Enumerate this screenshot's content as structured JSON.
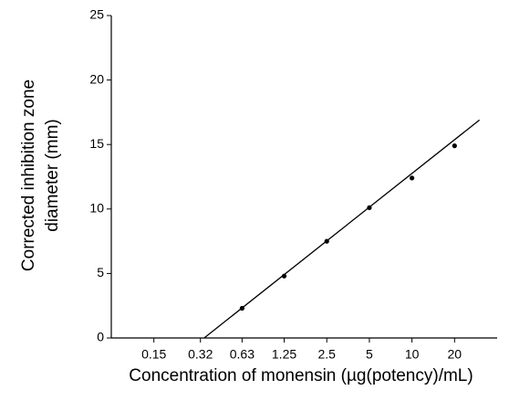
{
  "chart_data": {
    "type": "scatter",
    "xlabel": "Concentration of monensin (µg(potency)/mL)",
    "ylabel": [
      "Corrected inhibition zone",
      "diameter (mm)"
    ],
    "x_scale": "log",
    "xlim": [
      0.075,
      40
    ],
    "xticks": [
      0.15,
      0.32,
      0.63,
      1.25,
      2.5,
      5,
      10,
      20
    ],
    "ylim": [
      0,
      25
    ],
    "yticks": [
      0,
      5,
      10,
      15,
      20,
      25
    ],
    "series": [
      {
        "color": "#000000",
        "x": [
          0.63,
          1.25,
          2.5,
          5,
          10,
          20
        ],
        "values": [
          2.3,
          4.8,
          7.5,
          10.1,
          12.4,
          14.9
        ]
      }
    ],
    "fit_line": {
      "color": "#000000",
      "x": [
        0.34,
        30
      ],
      "values": [
        0,
        16.9
      ]
    }
  }
}
